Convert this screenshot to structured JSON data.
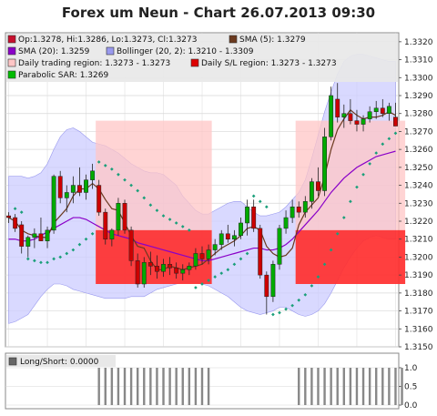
{
  "chart_data": {
    "type": "candlestick",
    "title": "Forex um Neun - Chart 26.07.2013 09:30",
    "legend": [
      {
        "label": "Op:1.3278, Hi:1.3286, Lo:1.3273, Cl:1.3273",
        "color": "#c8102e"
      },
      {
        "label": "SMA (5): 1.3279",
        "color": "#6b3a1f"
      },
      {
        "label": "SMA (20): 1.3259",
        "color": "#8a00c8"
      },
      {
        "label": "Bollinger (20, 2): 1.3210 - 1.3309",
        "color": "#9999ee"
      },
      {
        "label": "Daily trading region: 1.3273 - 1.3273",
        "color": "#ffc6c6"
      },
      {
        "label": "Daily S/L region: 1.3273 - 1.3273",
        "color": "#dd0000"
      },
      {
        "label": "Parabolic SAR: 1.3269",
        "color": "#00bb00"
      }
    ],
    "y_ticks": [
      "1.3320",
      "1.3310",
      "1.3300",
      "1.3290",
      "1.3280",
      "1.3270",
      "1.3260",
      "1.3250",
      "1.3240",
      "1.3230",
      "1.3220",
      "1.3210",
      "1.3200",
      "1.3190",
      "1.3180",
      "1.3170",
      "1.3160",
      "1.3150"
    ],
    "ylim": [
      1.315,
      1.3325
    ],
    "candles": [
      {
        "o": 1.3223,
        "h": 1.3225,
        "l": 1.3219,
        "c": 1.3222
      },
      {
        "o": 1.3222,
        "h": 1.3224,
        "l": 1.3214,
        "c": 1.3216
      },
      {
        "o": 1.3218,
        "h": 1.322,
        "l": 1.3202,
        "c": 1.3206
      },
      {
        "o": 1.3206,
        "h": 1.3212,
        "l": 1.32,
        "c": 1.3211
      },
      {
        "o": 1.3211,
        "h": 1.3216,
        "l": 1.3205,
        "c": 1.3213
      },
      {
        "o": 1.3213,
        "h": 1.3222,
        "l": 1.3209,
        "c": 1.3209
      },
      {
        "o": 1.3209,
        "h": 1.3217,
        "l": 1.3205,
        "c": 1.3215
      },
      {
        "o": 1.3215,
        "h": 1.3246,
        "l": 1.3213,
        "c": 1.3245
      },
      {
        "o": 1.3245,
        "h": 1.3248,
        "l": 1.323,
        "c": 1.3233
      },
      {
        "o": 1.3233,
        "h": 1.324,
        "l": 1.3225,
        "c": 1.3236
      },
      {
        "o": 1.3236,
        "h": 1.3245,
        "l": 1.323,
        "c": 1.324
      },
      {
        "o": 1.324,
        "h": 1.325,
        "l": 1.3234,
        "c": 1.3236
      },
      {
        "o": 1.3236,
        "h": 1.3246,
        "l": 1.3232,
        "c": 1.3243
      },
      {
        "o": 1.3243,
        "h": 1.3252,
        "l": 1.3238,
        "c": 1.3248
      },
      {
        "o": 1.324,
        "h": 1.3243,
        "l": 1.3223,
        "c": 1.3225
      },
      {
        "o": 1.3225,
        "h": 1.3227,
        "l": 1.3207,
        "c": 1.321
      },
      {
        "o": 1.321,
        "h": 1.3216,
        "l": 1.3206,
        "c": 1.3215
      },
      {
        "o": 1.3215,
        "h": 1.3233,
        "l": 1.3212,
        "c": 1.323
      },
      {
        "o": 1.323,
        "h": 1.3232,
        "l": 1.3213,
        "c": 1.3215
      },
      {
        "o": 1.3215,
        "h": 1.3217,
        "l": 1.3195,
        "c": 1.3198
      },
      {
        "o": 1.3198,
        "h": 1.3202,
        "l": 1.3183,
        "c": 1.3185
      },
      {
        "o": 1.3185,
        "h": 1.32,
        "l": 1.3183,
        "c": 1.3197
      },
      {
        "o": 1.3197,
        "h": 1.3203,
        "l": 1.319,
        "c": 1.3195
      },
      {
        "o": 1.3195,
        "h": 1.3201,
        "l": 1.3188,
        "c": 1.3192
      },
      {
        "o": 1.3192,
        "h": 1.3199,
        "l": 1.3189,
        "c": 1.3196
      },
      {
        "o": 1.3196,
        "h": 1.32,
        "l": 1.319,
        "c": 1.3194
      },
      {
        "o": 1.3194,
        "h": 1.3197,
        "l": 1.3188,
        "c": 1.3191
      },
      {
        "o": 1.3191,
        "h": 1.3196,
        "l": 1.3187,
        "c": 1.3193
      },
      {
        "o": 1.3193,
        "h": 1.3197,
        "l": 1.319,
        "c": 1.3195
      },
      {
        "o": 1.3195,
        "h": 1.3205,
        "l": 1.3193,
        "c": 1.3202
      },
      {
        "o": 1.3202,
        "h": 1.3206,
        "l": 1.3196,
        "c": 1.3199
      },
      {
        "o": 1.3199,
        "h": 1.3207,
        "l": 1.3196,
        "c": 1.3204
      },
      {
        "o": 1.3204,
        "h": 1.321,
        "l": 1.3201,
        "c": 1.3207
      },
      {
        "o": 1.3207,
        "h": 1.3215,
        "l": 1.3204,
        "c": 1.3213
      },
      {
        "o": 1.3213,
        "h": 1.3218,
        "l": 1.3208,
        "c": 1.321
      },
      {
        "o": 1.321,
        "h": 1.3215,
        "l": 1.3206,
        "c": 1.3212
      },
      {
        "o": 1.3212,
        "h": 1.3222,
        "l": 1.321,
        "c": 1.3219
      },
      {
        "o": 1.3219,
        "h": 1.3232,
        "l": 1.3212,
        "c": 1.3228
      },
      {
        "o": 1.3228,
        "h": 1.3232,
        "l": 1.3214,
        "c": 1.3216
      },
      {
        "o": 1.3216,
        "h": 1.3218,
        "l": 1.3188,
        "c": 1.319
      },
      {
        "o": 1.319,
        "h": 1.3192,
        "l": 1.3168,
        "c": 1.3178
      },
      {
        "o": 1.3178,
        "h": 1.3198,
        "l": 1.3175,
        "c": 1.3196
      },
      {
        "o": 1.3196,
        "h": 1.3218,
        "l": 1.3193,
        "c": 1.3216
      },
      {
        "o": 1.3216,
        "h": 1.3226,
        "l": 1.3213,
        "c": 1.3222
      },
      {
        "o": 1.3222,
        "h": 1.3232,
        "l": 1.3219,
        "c": 1.3228
      },
      {
        "o": 1.3228,
        "h": 1.3231,
        "l": 1.3222,
        "c": 1.3225
      },
      {
        "o": 1.3225,
        "h": 1.3234,
        "l": 1.3222,
        "c": 1.3231
      },
      {
        "o": 1.3231,
        "h": 1.3244,
        "l": 1.3227,
        "c": 1.3242
      },
      {
        "o": 1.3242,
        "h": 1.325,
        "l": 1.3234,
        "c": 1.3237
      },
      {
        "o": 1.3237,
        "h": 1.3272,
        "l": 1.3234,
        "c": 1.3267
      },
      {
        "o": 1.3267,
        "h": 1.3295,
        "l": 1.3265,
        "c": 1.329
      },
      {
        "o": 1.3288,
        "h": 1.3297,
        "l": 1.3275,
        "c": 1.3278
      },
      {
        "o": 1.3278,
        "h": 1.3285,
        "l": 1.3272,
        "c": 1.328
      },
      {
        "o": 1.328,
        "h": 1.3288,
        "l": 1.3274,
        "c": 1.3276
      },
      {
        "o": 1.3276,
        "h": 1.3282,
        "l": 1.327,
        "c": 1.3274
      },
      {
        "o": 1.3274,
        "h": 1.3279,
        "l": 1.327,
        "c": 1.3277
      },
      {
        "o": 1.3277,
        "h": 1.3284,
        "l": 1.3275,
        "c": 1.3281
      },
      {
        "o": 1.3281,
        "h": 1.3287,
        "l": 1.3277,
        "c": 1.3283
      },
      {
        "o": 1.3283,
        "h": 1.3288,
        "l": 1.3278,
        "c": 1.328
      },
      {
        "o": 1.328,
        "h": 1.3286,
        "l": 1.3276,
        "c": 1.3284
      },
      {
        "o": 1.3278,
        "h": 1.3286,
        "l": 1.3273,
        "c": 1.3273
      }
    ],
    "sma5": [
      1.3222,
      1.322,
      1.3215,
      1.3213,
      1.3212,
      1.3211,
      1.3211,
      1.3219,
      1.3223,
      1.3227,
      1.3234,
      1.3238,
      1.3238,
      1.3241,
      1.3238,
      1.3232,
      1.3227,
      1.3226,
      1.3219,
      1.3212,
      1.3206,
      1.3205,
      1.3198,
      1.3193,
      1.3193,
      1.3195,
      1.3194,
      1.3193,
      1.3194,
      1.3195,
      1.3196,
      1.3199,
      1.3202,
      1.3205,
      1.3207,
      1.3209,
      1.3212,
      1.3216,
      1.3217,
      1.3215,
      1.3206,
      1.3202,
      1.32,
      1.3201,
      1.3205,
      1.3218,
      1.3225,
      1.3229,
      1.3233,
      1.3245,
      1.326,
      1.3271,
      1.3277,
      1.3282,
      1.3279,
      1.3277,
      1.3278,
      1.3278,
      1.3279,
      1.3281,
      1.3279
    ],
    "sma20": [
      1.321,
      1.321,
      1.3209,
      1.3209,
      1.321,
      1.3212,
      1.3214,
      1.3216,
      1.3218,
      1.322,
      1.3222,
      1.3222,
      1.3221,
      1.3219,
      1.3217,
      1.3215,
      1.3213,
      1.3212,
      1.3211,
      1.321,
      1.3208,
      1.3207,
      1.3206,
      1.3205,
      1.3204,
      1.3203,
      1.3202,
      1.3201,
      1.32,
      1.3199,
      1.3198,
      1.3198,
      1.3199,
      1.32,
      1.3201,
      1.3202,
      1.3203,
      1.3204,
      1.3205,
      1.3205,
      1.3204,
      1.3204,
      1.3205,
      1.3207,
      1.321,
      1.3214,
      1.3218,
      1.3222,
      1.3226,
      1.3231,
      1.3236,
      1.324,
      1.3244,
      1.3247,
      1.325,
      1.3252,
      1.3254,
      1.3256,
      1.3257,
      1.3258,
      1.3259
    ],
    "boll_upper": [
      1.3245,
      1.3245,
      1.3245,
      1.3244,
      1.3245,
      1.3247,
      1.3252,
      1.326,
      1.3267,
      1.3271,
      1.3272,
      1.327,
      1.3267,
      1.3264,
      1.3263,
      1.3262,
      1.326,
      1.3258,
      1.3255,
      1.3252,
      1.325,
      1.3248,
      1.3247,
      1.3247,
      1.3246,
      1.3243,
      1.324,
      1.3234,
      1.323,
      1.3226,
      1.3224,
      1.3224,
      1.3226,
      1.3228,
      1.323,
      1.3231,
      1.3231,
      1.3228,
      1.3225,
      1.3223,
      1.3223,
      1.3224,
      1.3225,
      1.3228,
      1.3232,
      1.3236,
      1.3243,
      1.3255,
      1.3268,
      1.3281,
      1.3292,
      1.3302,
      1.3309,
      1.3312,
      1.3313,
      1.3313,
      1.3312,
      1.3311,
      1.331,
      1.3309,
      1.3309
    ],
    "boll_lower": [
      1.3163,
      1.3164,
      1.3166,
      1.3168,
      1.3173,
      1.3178,
      1.3182,
      1.3185,
      1.3185,
      1.3184,
      1.3182,
      1.3181,
      1.318,
      1.3179,
      1.3178,
      1.3177,
      1.3177,
      1.3177,
      1.3177,
      1.3178,
      1.3178,
      1.3178,
      1.318,
      1.3182,
      1.3183,
      1.3184,
      1.3185,
      1.3186,
      1.3186,
      1.3186,
      1.3185,
      1.3184,
      1.3182,
      1.318,
      1.3178,
      1.3175,
      1.3172,
      1.317,
      1.3169,
      1.3168,
      1.3169,
      1.317,
      1.3172,
      1.3172,
      1.317,
      1.3168,
      1.3167,
      1.3168,
      1.317,
      1.3174,
      1.318,
      1.3187,
      1.3194,
      1.32,
      1.3205,
      1.3209,
      1.3211,
      1.3212,
      1.3211,
      1.321,
      1.321
    ],
    "sar": [
      null,
      1.3227,
      1.3225,
      1.3199,
      1.3198,
      1.3197,
      1.3197,
      1.3199,
      1.32,
      1.3202,
      1.3204,
      1.3207,
      1.321,
      1.3213,
      1.3253,
      1.3251,
      1.3249,
      1.3246,
      1.3243,
      1.324,
      1.3237,
      1.3233,
      1.3229,
      1.3226,
      1.3223,
      1.3221,
      1.3219,
      1.3217,
      1.3215,
      1.3183,
      1.3185,
      1.3187,
      1.3189,
      1.3191,
      1.3193,
      1.3196,
      1.3199,
      1.3202,
      1.3234,
      1.3231,
      1.3228,
      1.3168,
      1.3169,
      1.3171,
      1.3173,
      1.3176,
      1.3179,
      1.3184,
      1.3189,
      1.3196,
      1.3204,
      1.3213,
      1.3222,
      1.3231,
      1.3239,
      1.3246,
      1.3252,
      1.3258,
      1.3263,
      1.3266,
      1.3269
    ],
    "trading_regions": [
      {
        "start": 14,
        "end": 32,
        "high": 1.3276,
        "low": 1.3185
      },
      {
        "start": 45,
        "end": 62,
        "high": 1.3276,
        "low": 1.3185
      }
    ],
    "sl_regions": [
      {
        "start": 14,
        "end": 32,
        "high": 1.3215,
        "low": 1.3185
      },
      {
        "start": 45,
        "end": 62,
        "high": 1.3215,
        "low": 1.3185
      }
    ],
    "indicator": {
      "label": "Long/Short: 0.0000",
      "y_ticks": [
        "1.0",
        "0.5",
        "0.0"
      ],
      "ylim": [
        0,
        1
      ],
      "bars": [
        {
          "start": 0,
          "end": 13,
          "value": 0
        },
        {
          "start": 14,
          "end": 32,
          "value": 1
        },
        {
          "start": 33,
          "end": 44,
          "value": 0
        },
        {
          "start": 45,
          "end": 62,
          "value": 1
        },
        {
          "start": 63,
          "end": 80,
          "value": 0
        }
      ]
    },
    "colors": {
      "up": "#00aa00",
      "down": "#cc0000",
      "sma5": "#6b3a1f",
      "sma20": "#8a00c8",
      "boll": "#ccccff",
      "boll_edge": "#9999ee",
      "sar": "#1a9f7a",
      "trading": "#ffc6c6",
      "sl": "#ff0000",
      "grid": "#d8d8d8"
    }
  }
}
